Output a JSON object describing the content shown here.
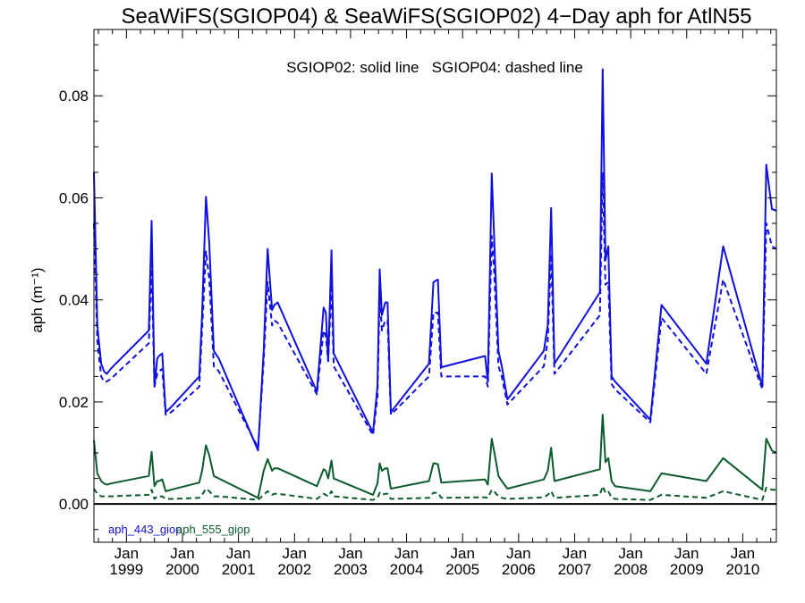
{
  "chart_data": {
    "type": "line",
    "title": "SeaWiFS(SGIOP04) & SeaWiFS(SGIOP02) 4−Day aph for AtlN55",
    "annotation": "SGIOP02: solid line   SGIOP04: dashed line",
    "ylabel": "aph (m⁻¹)",
    "ylim": [
      -0.0075,
      0.093
    ],
    "xlim": [
      1998.42,
      2010.6
    ],
    "yticks": [
      {
        "value": 0.0,
        "label": "0.00"
      },
      {
        "value": 0.02,
        "label": "0.02"
      },
      {
        "value": 0.04,
        "label": "0.04"
      },
      {
        "value": 0.06,
        "label": "0.06"
      },
      {
        "value": 0.08,
        "label": "0.08"
      }
    ],
    "xticks": [
      {
        "value": 1999.0,
        "month": "Jan",
        "year": "1999"
      },
      {
        "value": 2000.0,
        "month": "Jan",
        "year": "2000"
      },
      {
        "value": 2001.0,
        "month": "Jan",
        "year": "2001"
      },
      {
        "value": 2002.0,
        "month": "Jan",
        "year": "2002"
      },
      {
        "value": 2003.0,
        "month": "Jan",
        "year": "2003"
      },
      {
        "value": 2004.0,
        "month": "Jan",
        "year": "2004"
      },
      {
        "value": 2005.0,
        "month": "Jan",
        "year": "2005"
      },
      {
        "value": 2006.0,
        "month": "Jan",
        "year": "2006"
      },
      {
        "value": 2007.0,
        "month": "Jan",
        "year": "2007"
      },
      {
        "value": 2008.0,
        "month": "Jan",
        "year": "2008"
      },
      {
        "value": 2009.0,
        "month": "Jan",
        "year": "2009"
      },
      {
        "value": 2010.0,
        "month": "Jan",
        "year": "2010"
      }
    ],
    "legend": [
      {
        "label": "aph_443_giop",
        "color": "#1010e0"
      },
      {
        "label": "aph_555_giop",
        "color": "#0c5c2c"
      }
    ],
    "series": [
      {
        "name": "aph_443_giop",
        "variant": "SGIOP02",
        "dash": "solid",
        "color": "#1010e0",
        "x": [
          1998.42,
          1998.48,
          1998.55,
          1998.6,
          1998.65,
          1998.72,
          1999.4,
          1999.45,
          1999.5,
          1999.55,
          1999.58,
          1999.64,
          1999.7,
          1999.8,
          2000.3,
          2000.35,
          2000.42,
          2000.48,
          2000.56,
          2000.65,
          2001.35,
          2001.45,
          2001.52,
          2001.6,
          2001.64,
          2001.7,
          2002.4,
          2002.52,
          2002.56,
          2002.6,
          2002.66,
          2002.7,
          2003.4,
          2003.48,
          2003.52,
          2003.56,
          2003.62,
          2003.66,
          2003.72,
          2004.4,
          2004.48,
          2004.56,
          2004.62,
          2005.4,
          2005.45,
          2005.52,
          2005.56,
          2005.64,
          2005.7,
          2005.8,
          2006.45,
          2006.52,
          2006.58,
          2006.64,
          2007.45,
          2007.5,
          2007.55,
          2007.6,
          2007.66,
          2007.72,
          2008.35,
          2008.55,
          2009.35,
          2009.65,
          2010.35,
          2010.42,
          2010.52,
          2010.6
        ],
        "y": [
          0.065,
          0.035,
          0.0275,
          0.026,
          0.0255,
          0.0265,
          0.034,
          0.0555,
          0.023,
          0.0285,
          0.029,
          0.0295,
          0.018,
          0.019,
          0.025,
          0.037,
          0.0602,
          0.051,
          0.03,
          0.0285,
          0.0105,
          0.03,
          0.05,
          0.038,
          0.039,
          0.0395,
          0.022,
          0.0385,
          0.0375,
          0.028,
          0.0497,
          0.0295,
          0.014,
          0.023,
          0.046,
          0.037,
          0.0395,
          0.0395,
          0.018,
          0.0275,
          0.0435,
          0.044,
          0.0268,
          0.029,
          0.024,
          0.0648,
          0.053,
          0.03,
          0.027,
          0.0205,
          0.03,
          0.035,
          0.058,
          0.0275,
          0.0415,
          0.0852,
          0.0478,
          0.0505,
          0.025,
          0.024,
          0.0165,
          0.039,
          0.0275,
          0.0505,
          0.023,
          0.0665,
          0.0578,
          0.0575
        ]
      },
      {
        "name": "aph_443_giop",
        "variant": "SGIOP04",
        "dash": "dashed",
        "color": "#1010e0",
        "x": [
          1998.42,
          1998.48,
          1998.55,
          1998.6,
          1998.65,
          1998.72,
          1999.4,
          1999.45,
          1999.5,
          1999.55,
          1999.58,
          1999.64,
          1999.7,
          1999.8,
          2000.3,
          2000.35,
          2000.42,
          2000.48,
          2000.56,
          2000.65,
          2001.35,
          2001.45,
          2001.52,
          2001.6,
          2001.64,
          2001.7,
          2002.4,
          2002.52,
          2002.56,
          2002.6,
          2002.66,
          2002.7,
          2003.4,
          2003.48,
          2003.52,
          2003.56,
          2003.62,
          2003.66,
          2003.72,
          2004.4,
          2004.48,
          2004.56,
          2004.62,
          2005.4,
          2005.45,
          2005.52,
          2005.56,
          2005.64,
          2005.7,
          2005.8,
          2006.45,
          2006.52,
          2006.58,
          2006.64,
          2007.45,
          2007.5,
          2007.55,
          2007.6,
          2007.66,
          2007.72,
          2008.35,
          2008.55,
          2009.35,
          2009.65,
          2010.35,
          2010.42,
          2010.52,
          2010.6
        ],
        "y": [
          0.055,
          0.032,
          0.025,
          0.024,
          0.024,
          0.0245,
          0.0315,
          0.047,
          0.023,
          0.0255,
          0.026,
          0.0265,
          0.0175,
          0.018,
          0.023,
          0.034,
          0.0495,
          0.044,
          0.027,
          0.026,
          0.011,
          0.028,
          0.0435,
          0.035,
          0.036,
          0.0355,
          0.0215,
          0.034,
          0.033,
          0.028,
          0.043,
          0.027,
          0.0135,
          0.021,
          0.041,
          0.034,
          0.036,
          0.036,
          0.0175,
          0.025,
          0.0375,
          0.0375,
          0.025,
          0.025,
          0.023,
          0.0525,
          0.046,
          0.027,
          0.025,
          0.0195,
          0.027,
          0.032,
          0.049,
          0.0255,
          0.037,
          0.065,
          0.043,
          0.0435,
          0.0235,
          0.0225,
          0.016,
          0.0365,
          0.0255,
          0.044,
          0.0225,
          0.055,
          0.0505,
          0.05
        ]
      },
      {
        "name": "aph_555_giop",
        "variant": "SGIOP02",
        "dash": "solid",
        "color": "#0c5c2c",
        "x": [
          1998.42,
          1998.48,
          1998.55,
          1998.6,
          1998.65,
          1998.72,
          1999.4,
          1999.45,
          1999.5,
          1999.55,
          1999.58,
          1999.64,
          1999.7,
          1999.8,
          2000.3,
          2000.35,
          2000.42,
          2000.48,
          2000.56,
          2000.65,
          2001.35,
          2001.45,
          2001.52,
          2001.6,
          2001.64,
          2001.7,
          2002.4,
          2002.52,
          2002.56,
          2002.6,
          2002.66,
          2002.7,
          2003.4,
          2003.48,
          2003.52,
          2003.56,
          2003.62,
          2003.66,
          2003.72,
          2004.4,
          2004.48,
          2004.56,
          2004.62,
          2005.4,
          2005.45,
          2005.52,
          2005.56,
          2005.64,
          2005.7,
          2005.8,
          2006.45,
          2006.52,
          2006.58,
          2006.64,
          2007.45,
          2007.5,
          2007.55,
          2007.6,
          2007.66,
          2007.72,
          2008.35,
          2008.55,
          2009.35,
          2009.65,
          2010.35,
          2010.42,
          2010.52,
          2010.6
        ],
        "y": [
          0.0125,
          0.006,
          0.0045,
          0.004,
          0.0038,
          0.004,
          0.0055,
          0.0102,
          0.0035,
          0.0045,
          0.0045,
          0.0048,
          0.0025,
          0.0028,
          0.0042,
          0.0065,
          0.0115,
          0.0095,
          0.0055,
          0.005,
          0.0012,
          0.0065,
          0.0088,
          0.0065,
          0.007,
          0.007,
          0.0035,
          0.0068,
          0.0065,
          0.005,
          0.0085,
          0.005,
          0.0018,
          0.004,
          0.008,
          0.0065,
          0.007,
          0.007,
          0.003,
          0.0045,
          0.008,
          0.0078,
          0.0042,
          0.0048,
          0.0038,
          0.0128,
          0.0105,
          0.0055,
          0.0045,
          0.003,
          0.0048,
          0.0065,
          0.011,
          0.0045,
          0.0068,
          0.0175,
          0.0082,
          0.009,
          0.0045,
          0.0035,
          0.0025,
          0.006,
          0.0045,
          0.009,
          0.0028,
          0.0128,
          0.0105,
          0.01
        ]
      },
      {
        "name": "aph_555_giop",
        "variant": "SGIOP04",
        "dash": "dashed",
        "color": "#0c5c2c",
        "x": [
          1998.42,
          1998.48,
          1998.55,
          1998.6,
          1998.65,
          1998.72,
          1999.4,
          1999.45,
          1999.5,
          1999.55,
          1999.58,
          1999.64,
          1999.7,
          1999.8,
          2000.3,
          2000.35,
          2000.42,
          2000.48,
          2000.56,
          2000.65,
          2001.35,
          2001.45,
          2001.52,
          2001.6,
          2001.64,
          2001.7,
          2002.4,
          2002.52,
          2002.56,
          2002.6,
          2002.66,
          2002.7,
          2003.4,
          2003.48,
          2003.52,
          2003.56,
          2003.62,
          2003.66,
          2003.72,
          2004.4,
          2004.48,
          2004.56,
          2004.62,
          2005.4,
          2005.45,
          2005.52,
          2005.56,
          2005.64,
          2005.7,
          2005.8,
          2006.45,
          2006.52,
          2006.58,
          2006.64,
          2007.45,
          2007.5,
          2007.55,
          2007.6,
          2007.66,
          2007.72,
          2008.35,
          2008.55,
          2009.35,
          2009.65,
          2010.35,
          2010.42,
          2010.52,
          2010.6
        ],
        "y": [
          0.003,
          0.002,
          0.0015,
          0.0015,
          0.0015,
          0.0015,
          0.0018,
          0.0028,
          0.001,
          0.0015,
          0.0015,
          0.0015,
          0.001,
          0.001,
          0.0012,
          0.0018,
          0.003,
          0.0025,
          0.0015,
          0.0015,
          0.0008,
          0.0018,
          0.0025,
          0.0018,
          0.002,
          0.002,
          0.001,
          0.002,
          0.0018,
          0.0015,
          0.0025,
          0.0015,
          0.0008,
          0.0012,
          0.0022,
          0.0018,
          0.002,
          0.002,
          0.001,
          0.0012,
          0.0022,
          0.0022,
          0.0012,
          0.0013,
          0.0012,
          0.0028,
          0.0025,
          0.0015,
          0.0012,
          0.001,
          0.0013,
          0.0018,
          0.0025,
          0.0012,
          0.0018,
          0.0035,
          0.0022,
          0.0025,
          0.0012,
          0.001,
          0.0008,
          0.0018,
          0.0012,
          0.0025,
          0.0008,
          0.0032,
          0.0028,
          0.0028
        ]
      }
    ]
  }
}
